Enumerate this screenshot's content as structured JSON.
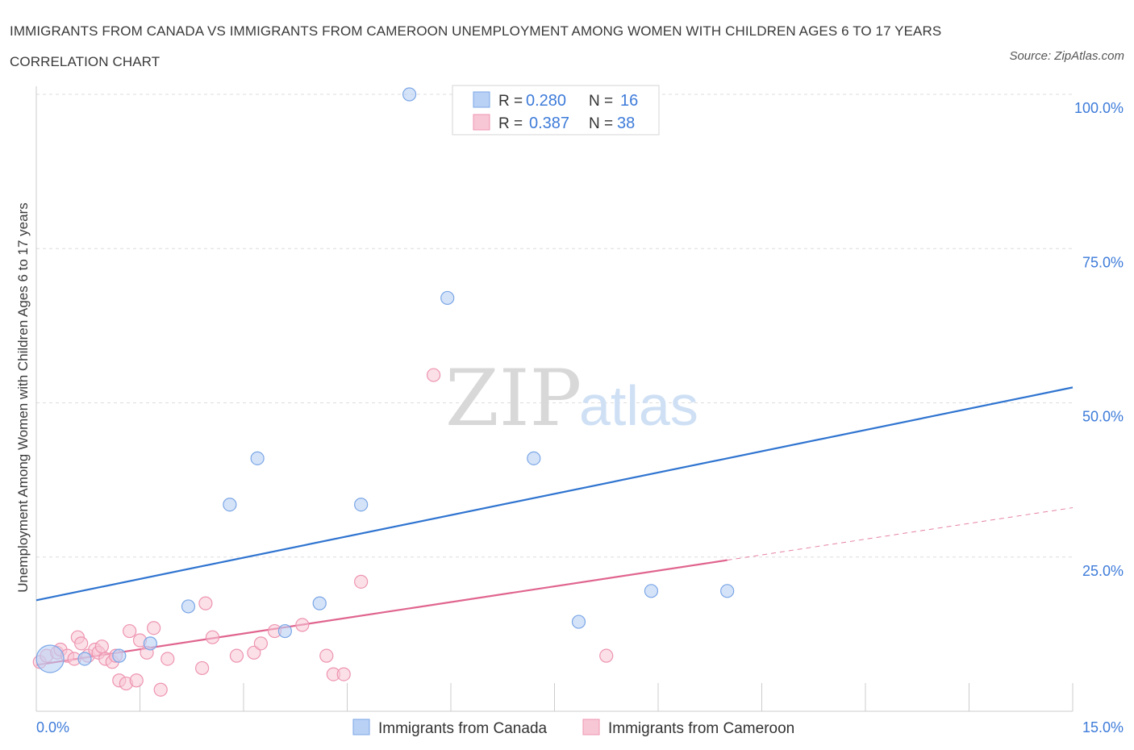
{
  "title": "IMMIGRANTS FROM CANADA VS IMMIGRANTS FROM CAMEROON UNEMPLOYMENT AMONG WOMEN WITH CHILDREN AGES 6 TO 17 YEARS CORRELATION CHART",
  "source": "Source: ZipAtlas.com",
  "watermark": {
    "zip": "ZIP",
    "atlas": "atlas"
  },
  "colors": {
    "canada_fill": "#b9d1f5",
    "canada_stroke": "#7aa6e6",
    "canada_line": "#2f74d0",
    "cameroon_fill": "#f8c7d5",
    "cameroon_stroke": "#ee94b0",
    "cameroon_line": "#e0648f",
    "accent_text": "#3d7bd9",
    "grid": "#dddddd"
  },
  "stats_legend": [
    {
      "r_label": "R =",
      "r_value": "0.280",
      "n_label": "N =",
      "n_value": "16"
    },
    {
      "r_label": "R =",
      "r_value": "0.387",
      "n_label": "N =",
      "n_value": "38"
    }
  ],
  "chart_data": {
    "type": "scatter",
    "title": "IMMIGRANTS FROM CANADA VS IMMIGRANTS FROM CAMEROON UNEMPLOYMENT AMONG WOMEN WITH CHILDREN AGES 6 TO 17 YEARS CORRELATION CHART",
    "xlabel": "",
    "ylabel": "Unemployment Among Women with Children Ages 6 to 17 years",
    "xlim": [
      0,
      15
    ],
    "ylim": [
      0,
      100
    ],
    "x_tick_labels": [
      "0.0%",
      "15.0%"
    ],
    "y_ticks": [
      25,
      50,
      75,
      100
    ],
    "y_tick_labels": [
      "25.0%",
      "50.0%",
      "75.0%",
      "100.0%"
    ],
    "grid": "horizontal dashed",
    "legend": "bottom-center",
    "series": [
      {
        "name": "Immigrants from Canada",
        "r": 0.28,
        "n": 16,
        "trend": {
          "x": [
            0,
            15
          ],
          "y": [
            18.0,
            52.5
          ],
          "dashed_extension": false
        },
        "points": [
          {
            "x": 0.2,
            "y": 8.5,
            "size": "large"
          },
          {
            "x": 0.7,
            "y": 8.5
          },
          {
            "x": 1.2,
            "y": 9.0
          },
          {
            "x": 1.65,
            "y": 11.0
          },
          {
            "x": 2.2,
            "y": 17.0
          },
          {
            "x": 2.8,
            "y": 33.5
          },
          {
            "x": 3.2,
            "y": 41.0
          },
          {
            "x": 3.6,
            "y": 13.0
          },
          {
            "x": 4.1,
            "y": 17.5
          },
          {
            "x": 4.7,
            "y": 33.5
          },
          {
            "x": 5.4,
            "y": 100.0
          },
          {
            "x": 5.95,
            "y": 67.0
          },
          {
            "x": 7.2,
            "y": 41.0
          },
          {
            "x": 7.85,
            "y": 14.5
          },
          {
            "x": 8.9,
            "y": 19.5
          },
          {
            "x": 10.0,
            "y": 19.5
          }
        ]
      },
      {
        "name": "Immigrants from Cameroon",
        "r": 0.387,
        "n": 38,
        "trend": {
          "x": [
            0,
            10.0
          ],
          "y": [
            7.5,
            24.5
          ],
          "dashed_extension": {
            "x": [
              10.0,
              15
            ],
            "y": [
              24.5,
              33.0
            ]
          }
        },
        "points": [
          {
            "x": 0.05,
            "y": 8.0
          },
          {
            "x": 0.15,
            "y": 9.0
          },
          {
            "x": 0.3,
            "y": 9.5
          },
          {
            "x": 0.35,
            "y": 10.0
          },
          {
            "x": 0.45,
            "y": 9.0
          },
          {
            "x": 0.55,
            "y": 8.5
          },
          {
            "x": 0.6,
            "y": 12.0
          },
          {
            "x": 0.65,
            "y": 11.0
          },
          {
            "x": 0.75,
            "y": 9.0
          },
          {
            "x": 0.85,
            "y": 10.0
          },
          {
            "x": 0.9,
            "y": 9.5
          },
          {
            "x": 0.95,
            "y": 10.5
          },
          {
            "x": 1.0,
            "y": 8.5
          },
          {
            "x": 1.1,
            "y": 8.0
          },
          {
            "x": 1.15,
            "y": 9.0
          },
          {
            "x": 1.2,
            "y": 5.0
          },
          {
            "x": 1.3,
            "y": 4.5
          },
          {
            "x": 1.35,
            "y": 13.0
          },
          {
            "x": 1.45,
            "y": 5.0
          },
          {
            "x": 1.5,
            "y": 11.5
          },
          {
            "x": 1.6,
            "y": 9.5
          },
          {
            "x": 1.7,
            "y": 13.5
          },
          {
            "x": 1.8,
            "y": 3.5
          },
          {
            "x": 1.9,
            "y": 8.5
          },
          {
            "x": 2.4,
            "y": 7.0
          },
          {
            "x": 2.45,
            "y": 17.5
          },
          {
            "x": 2.55,
            "y": 12.0
          },
          {
            "x": 2.9,
            "y": 9.0
          },
          {
            "x": 3.15,
            "y": 9.5
          },
          {
            "x": 3.25,
            "y": 11.0
          },
          {
            "x": 3.45,
            "y": 13.0
          },
          {
            "x": 3.85,
            "y": 14.0
          },
          {
            "x": 4.2,
            "y": 9.0
          },
          {
            "x": 4.3,
            "y": 6.0
          },
          {
            "x": 4.45,
            "y": 6.0
          },
          {
            "x": 4.7,
            "y": 21.0
          },
          {
            "x": 5.75,
            "y": 54.5
          },
          {
            "x": 8.25,
            "y": 9.0
          }
        ]
      }
    ]
  }
}
